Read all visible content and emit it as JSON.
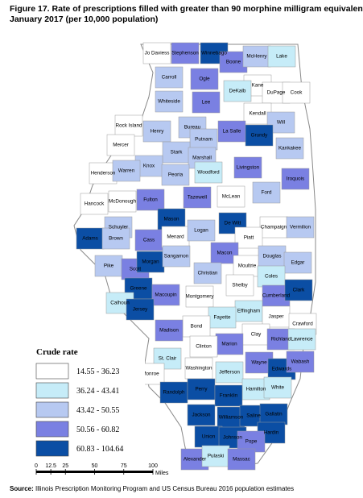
{
  "title": [
    "Figure 17. Rate of prescriptions filled with greater than 90 morphine milligram equivalents,",
    "January 2017 (per 10,000 population)"
  ],
  "legend": {
    "title": "Crude rate",
    "items": [
      {
        "label": "14.55 - 36.23",
        "color": "#ffffff"
      },
      {
        "label": "36.24 - 43.41",
        "color": "#c6ecf8"
      },
      {
        "label": "43.42 - 50.55",
        "color": "#b7c9f1"
      },
      {
        "label": "50.56 - 60.82",
        "color": "#7a80e2"
      },
      {
        "label": "60.83 - 104.64",
        "color": "#0b4ea4"
      }
    ]
  },
  "counties": [
    {
      "name": "Jo Daviess",
      "color": "#ffffff"
    },
    {
      "name": "Stephenson",
      "color": "#7a80e2"
    },
    {
      "name": "Winnebago",
      "color": "#0b4ea4"
    },
    {
      "name": "Boone",
      "color": "#7a80e2"
    },
    {
      "name": "McHenry",
      "color": "#b7c9f1"
    },
    {
      "name": "Lake",
      "color": "#c6ecf8"
    },
    {
      "name": "Carroll",
      "color": "#b7c9f1"
    },
    {
      "name": "Ogle",
      "color": "#7a80e2"
    },
    {
      "name": "Kane",
      "color": "#ffffff"
    },
    {
      "name": "DuPage",
      "color": "#ffffff"
    },
    {
      "name": "Cook",
      "color": "#ffffff"
    },
    {
      "name": "DeKalb",
      "color": "#c6ecf8"
    },
    {
      "name": "Whiteside",
      "color": "#b7c9f1"
    },
    {
      "name": "Lee",
      "color": "#7a80e2"
    },
    {
      "name": "Kendall",
      "color": "#ffffff"
    },
    {
      "name": "Will",
      "color": "#b7c9f1"
    },
    {
      "name": "Rock Island",
      "color": "#ffffff"
    },
    {
      "name": "Henry",
      "color": "#b7c9f1"
    },
    {
      "name": "Bureau",
      "color": "#b7c9f1"
    },
    {
      "name": "La Salle",
      "color": "#7a80e2"
    },
    {
      "name": "Grundy",
      "color": "#0b4ea4"
    },
    {
      "name": "Putnam",
      "color": "#b7c9f1"
    },
    {
      "name": "Mercer",
      "color": "#ffffff"
    },
    {
      "name": "Kankakee",
      "color": "#b7c9f1"
    },
    {
      "name": "Stark",
      "color": "#b7c9f1"
    },
    {
      "name": "Marshall",
      "color": "#b7c9f1"
    },
    {
      "name": "Knox",
      "color": "#b7c9f1"
    },
    {
      "name": "Livingston",
      "color": "#7a80e2"
    },
    {
      "name": "Henderson",
      "color": "#ffffff"
    },
    {
      "name": "Warren",
      "color": "#b7c9f1"
    },
    {
      "name": "Peoria",
      "color": "#b7c9f1"
    },
    {
      "name": "Woodford",
      "color": "#c6ecf8"
    },
    {
      "name": "Iroquois",
      "color": "#7a80e2"
    },
    {
      "name": "Ford",
      "color": "#b7c9f1"
    },
    {
      "name": "Fulton",
      "color": "#7a80e2"
    },
    {
      "name": "Tazewell",
      "color": "#7a80e2"
    },
    {
      "name": "McLean",
      "color": "#ffffff"
    },
    {
      "name": "Hancock",
      "color": "#ffffff"
    },
    {
      "name": "McDonough",
      "color": "#ffffff"
    },
    {
      "name": "Schuyler",
      "color": "#b7c9f1"
    },
    {
      "name": "Mason",
      "color": "#0b4ea4"
    },
    {
      "name": "De Witt",
      "color": "#0b4ea4"
    },
    {
      "name": "Champaign",
      "color": "#ffffff"
    },
    {
      "name": "Vermilion",
      "color": "#b7c9f1"
    },
    {
      "name": "Adams",
      "color": "#0b4ea4"
    },
    {
      "name": "Brown",
      "color": "#b7c9f1"
    },
    {
      "name": "Cass",
      "color": "#7a80e2"
    },
    {
      "name": "Menard",
      "color": "#ffffff"
    },
    {
      "name": "Logan",
      "color": "#b7c9f1"
    },
    {
      "name": "Piatt",
      "color": "#ffffff"
    },
    {
      "name": "Macon",
      "color": "#7a80e2"
    },
    {
      "name": "Pike",
      "color": "#b7c9f1"
    },
    {
      "name": "Scott",
      "color": "#7a80e2"
    },
    {
      "name": "Morgan",
      "color": "#0b4ea4"
    },
    {
      "name": "Sangamon",
      "color": "#b7c9f1"
    },
    {
      "name": "Christian",
      "color": "#b7c9f1"
    },
    {
      "name": "Moultrie",
      "color": "#ffffff"
    },
    {
      "name": "Douglas",
      "color": "#b7c9f1"
    },
    {
      "name": "Edgar",
      "color": "#b7c9f1"
    },
    {
      "name": "Coles",
      "color": "#c6ecf8"
    },
    {
      "name": "Shelby",
      "color": "#ffffff"
    },
    {
      "name": "Greene",
      "color": "#0b4ea4"
    },
    {
      "name": "Macoupin",
      "color": "#7a80e2"
    },
    {
      "name": "Montgomery",
      "color": "#ffffff"
    },
    {
      "name": "Cumberland",
      "color": "#7a80e2"
    },
    {
      "name": "Clark",
      "color": "#0b4ea4"
    },
    {
      "name": "Calhoun",
      "color": "#c6ecf8"
    },
    {
      "name": "Jersey",
      "color": "#0b4ea4"
    },
    {
      "name": "Effingham",
      "color": "#c6ecf8"
    },
    {
      "name": "Fayette",
      "color": "#c6ecf8"
    },
    {
      "name": "Jasper",
      "color": "#ffffff"
    },
    {
      "name": "Crawford",
      "color": "#ffffff"
    },
    {
      "name": "Bond",
      "color": "#ffffff"
    },
    {
      "name": "Madison",
      "color": "#7a80e2"
    },
    {
      "name": "Clay",
      "color": "#ffffff"
    },
    {
      "name": "Marion",
      "color": "#7a80e2"
    },
    {
      "name": "Richland",
      "color": "#7a80e2"
    },
    {
      "name": "Lawrence",
      "color": "#c6ecf8"
    },
    {
      "name": "Clinton",
      "color": "#ffffff"
    },
    {
      "name": "St. Clair",
      "color": "#c6ecf8"
    },
    {
      "name": "Wayne",
      "color": "#7a80e2"
    },
    {
      "name": "Washington",
      "color": "#ffffff"
    },
    {
      "name": "Edwards",
      "color": "#0b4ea4"
    },
    {
      "name": "Wabash",
      "color": "#7a80e2"
    },
    {
      "name": "Monroe",
      "color": "#ffffff"
    },
    {
      "name": "Jefferson",
      "color": "#c6ecf8"
    },
    {
      "name": "Hamilton",
      "color": "#c6ecf8"
    },
    {
      "name": "White",
      "color": "#c6ecf8"
    },
    {
      "name": "Randolph",
      "color": "#0b4ea4"
    },
    {
      "name": "Perry",
      "color": "#0b4ea4"
    },
    {
      "name": "Franklin",
      "color": "#0b4ea4"
    },
    {
      "name": "Jackson",
      "color": "#0b4ea4"
    },
    {
      "name": "Williamson",
      "color": "#0b4ea4"
    },
    {
      "name": "Saline",
      "color": "#0b4ea4"
    },
    {
      "name": "Gallatin",
      "color": "#0b4ea4"
    },
    {
      "name": "Hardin",
      "color": "#0b4ea4"
    },
    {
      "name": "Union",
      "color": "#0b4ea4"
    },
    {
      "name": "Johnson",
      "color": "#0b4ea4"
    },
    {
      "name": "Pope",
      "color": "#7a80e2"
    },
    {
      "name": "Alexander",
      "color": "#7a80e2"
    },
    {
      "name": "Pulaski",
      "color": "#c6ecf8"
    },
    {
      "name": "Massac",
      "color": "#7a80e2"
    }
  ],
  "scale_bar": {
    "ticks": [
      0,
      12.5,
      25,
      50,
      75,
      100
    ],
    "unit": "Miles"
  },
  "source": {
    "label": "Source:",
    "text": " Illinois Prescription Monitoring Program  and US Census Bureau 2016 population estimates"
  }
}
